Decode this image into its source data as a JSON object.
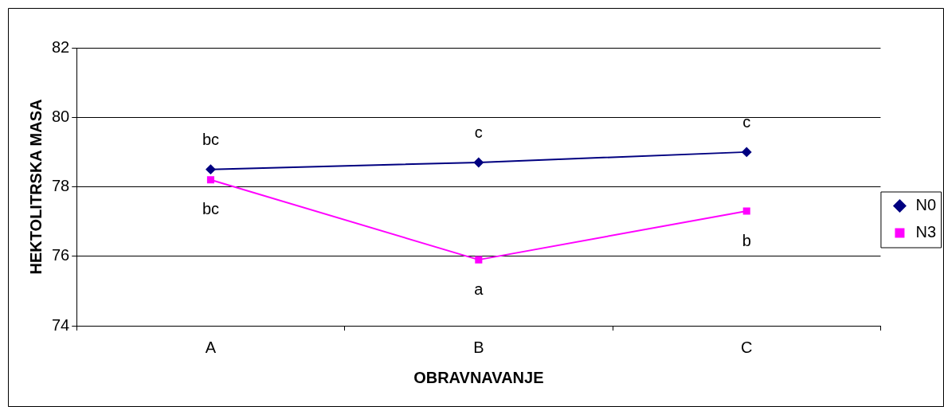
{
  "chart_data": {
    "type": "line",
    "xlabel": "OBRAVNAVANJE",
    "ylabel": "HEKTOLITRSKA MASA",
    "categories": [
      "A",
      "B",
      "C"
    ],
    "series": [
      {
        "name": "N0",
        "color": "#000080",
        "marker": "diamond",
        "values": [
          78.5,
          78.7,
          79.0
        ]
      },
      {
        "name": "N3",
        "color": "#ff00ff",
        "marker": "square",
        "values": [
          78.2,
          75.9,
          77.3
        ]
      }
    ],
    "ylim": [
      74,
      82
    ],
    "yticks": [
      74,
      76,
      78,
      80,
      82
    ],
    "grid": "y",
    "legend": "right",
    "annotations": [
      {
        "text": "bc",
        "x": "A",
        "y": 78.5
      },
      {
        "text": "bc",
        "x": "A",
        "y": 78.2
      },
      {
        "text": "c",
        "x": "B",
        "y": 78.7
      },
      {
        "text": "a",
        "x": "B",
        "y": 75.9
      },
      {
        "text": "c",
        "x": "C",
        "y": 79.0
      },
      {
        "text": "b",
        "x": "C",
        "y": 77.3
      }
    ]
  }
}
